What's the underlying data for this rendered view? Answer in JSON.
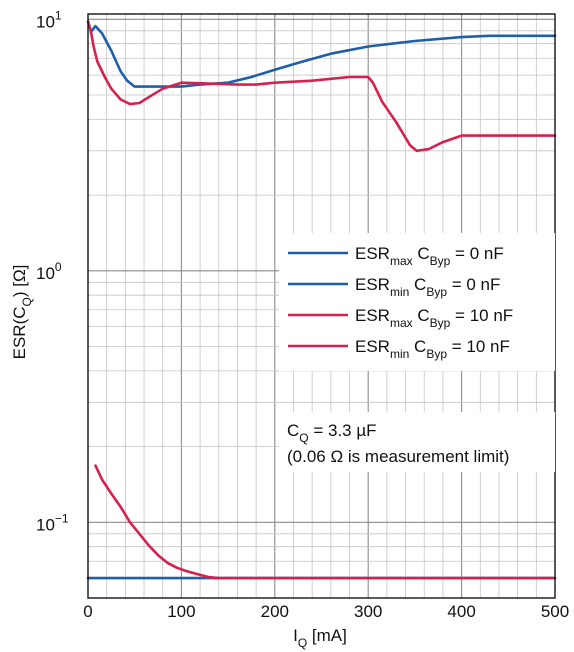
{
  "chart_data": {
    "type": "line",
    "xlabel": {
      "main": "I",
      "sub": "Q",
      "rest": " [mA]"
    },
    "ylabel": {
      "main": "ESR(C",
      "sub": "Q",
      "rest": ") [Ω]"
    },
    "xlim": [
      0,
      500
    ],
    "ylim": [
      0.05,
      10.5
    ],
    "yscale": "log",
    "grid": true,
    "x_ticks": [
      0,
      100,
      200,
      300,
      400,
      500
    ],
    "x_tick_labels": [
      "0",
      "100",
      "200",
      "300",
      "400",
      "500"
    ],
    "y_ticks": [
      {
        "value": 10,
        "base": "10",
        "exp": "1"
      },
      {
        "value": 1,
        "base": "10",
        "exp": "0"
      },
      {
        "value": 0.1,
        "base": "10",
        "exp": "−1"
      }
    ],
    "legend_position": "right",
    "annotation": {
      "line1": "C",
      "line1_sub": "Q",
      "line1_rest": " = 3.3 µF",
      "line2": "(0.06 Ω is measurement limit)"
    },
    "series": [
      {
        "name": "ESR_max C_Byp = 0 nF",
        "label": {
          "a": "ESR",
          "a_sub": "max",
          "b": " C",
          "b_sub": "Byp",
          "c": " = 0 nF"
        },
        "color": "#1f5fa8",
        "x": [
          3,
          8,
          15,
          25,
          35,
          42,
          50,
          60,
          80,
          100,
          120,
          150,
          175,
          200,
          230,
          260,
          300,
          350,
          400,
          430,
          470,
          500
        ],
        "y": [
          8.9,
          9.4,
          8.8,
          7.5,
          6.2,
          5.7,
          5.4,
          5.4,
          5.4,
          5.4,
          5.5,
          5.6,
          5.9,
          6.3,
          6.8,
          7.3,
          7.8,
          8.2,
          8.5,
          8.6,
          8.6,
          8.6
        ]
      },
      {
        "name": "ESR_min C_Byp = 0 nF",
        "label": {
          "a": "ESR",
          "a_sub": "min",
          "b": " C",
          "b_sub": "Byp",
          "c": " = 0 nF"
        },
        "color": "#1f5fa8",
        "x": [
          0,
          100,
          200,
          300,
          400,
          500
        ],
        "y": [
          0.06,
          0.06,
          0.06,
          0.06,
          0.06,
          0.06
        ]
      },
      {
        "name": "ESR_max C_Byp = 10 nF",
        "label": {
          "a": "ESR",
          "a_sub": "max",
          "b": " C",
          "b_sub": "Byp",
          "c": " = 10 nF"
        },
        "color": "#d6204e",
        "x": [
          0,
          3,
          6,
          10,
          18,
          25,
          35,
          45,
          55,
          65,
          80,
          100,
          130,
          160,
          180,
          200,
          240,
          280,
          300,
          305,
          315,
          330,
          345,
          352,
          365,
          380,
          400,
          430,
          500
        ],
        "y": [
          9.8,
          9.0,
          7.8,
          6.8,
          5.9,
          5.3,
          4.8,
          4.6,
          4.65,
          4.9,
          5.3,
          5.6,
          5.55,
          5.5,
          5.5,
          5.6,
          5.7,
          5.9,
          5.9,
          5.6,
          4.7,
          3.9,
          3.15,
          3.0,
          3.05,
          3.25,
          3.45,
          3.45,
          3.45
        ]
      },
      {
        "name": "ESR_min C_Byp = 10 nF",
        "label": {
          "a": "ESR",
          "a_sub": "min",
          "b": " C",
          "b_sub": "Byp",
          "c": " = 10 nF"
        },
        "color": "#d6204e",
        "x": [
          8,
          15,
          25,
          35,
          45,
          55,
          65,
          75,
          85,
          95,
          105,
          115,
          130,
          140,
          200,
          300,
          400,
          500
        ],
        "y": [
          0.168,
          0.148,
          0.13,
          0.115,
          0.1,
          0.09,
          0.081,
          0.074,
          0.069,
          0.066,
          0.064,
          0.0625,
          0.0605,
          0.06,
          0.06,
          0.06,
          0.06,
          0.06
        ]
      }
    ]
  }
}
